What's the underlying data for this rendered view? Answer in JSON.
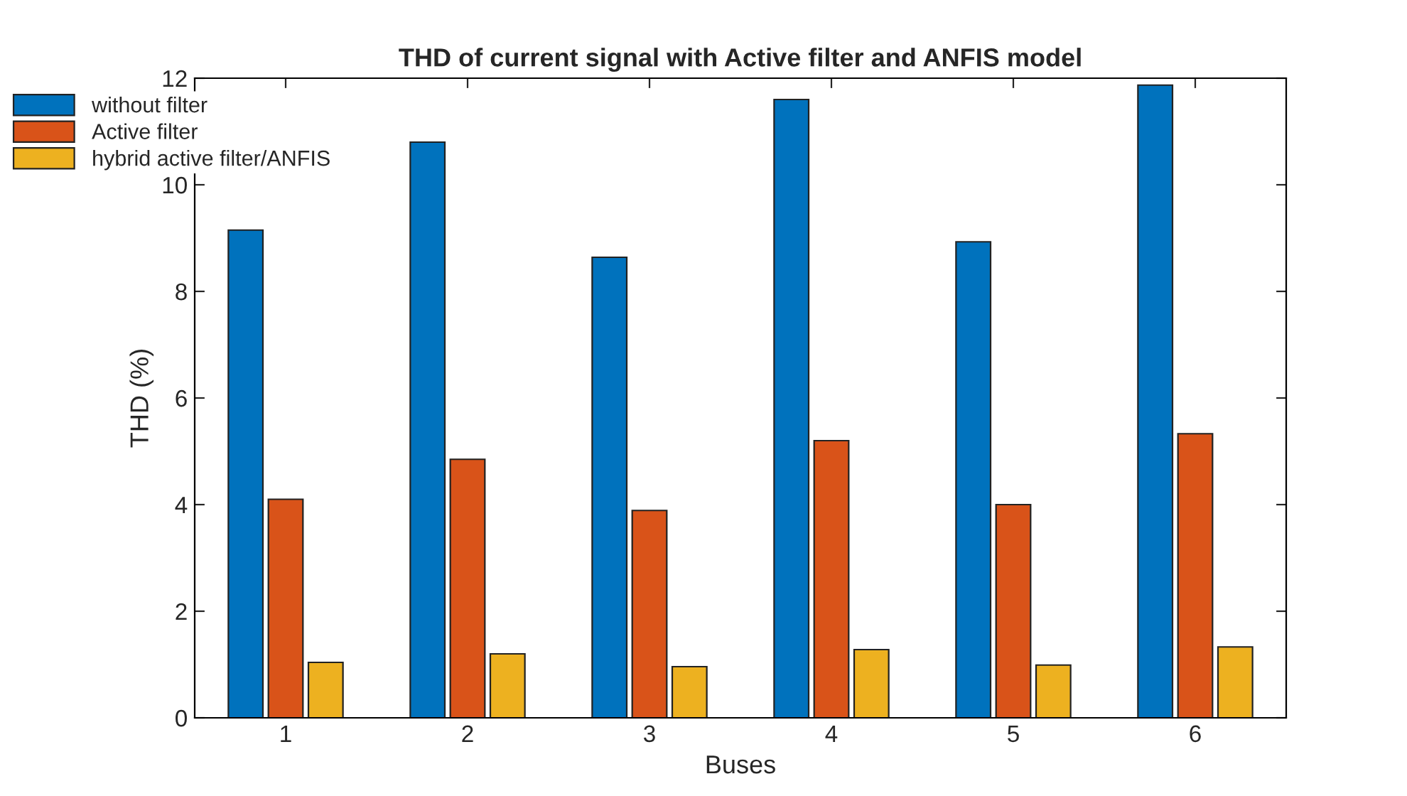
{
  "chart_data": {
    "type": "bar",
    "title": "THD of current signal with Active filter and ANFIS model",
    "xlabel": "Buses",
    "ylabel": "THD (%)",
    "categories": [
      "1",
      "2",
      "3",
      "4",
      "5",
      "6"
    ],
    "series": [
      {
        "name": "without filter",
        "color": "#0072bd",
        "values": [
          9.15,
          10.8,
          8.64,
          11.6,
          8.93,
          11.87
        ]
      },
      {
        "name": "Active filter",
        "color": "#d95319",
        "values": [
          4.1,
          4.85,
          3.89,
          5.2,
          4.0,
          5.33
        ]
      },
      {
        "name": "hybrid active filter/ANFIS",
        "color": "#edb120",
        "values": [
          1.04,
          1.2,
          0.96,
          1.28,
          0.99,
          1.33
        ]
      }
    ],
    "ylim": [
      0,
      12
    ],
    "yticks": [
      0,
      2,
      4,
      6,
      8,
      10,
      12
    ],
    "grid": false,
    "legend": "top left"
  }
}
